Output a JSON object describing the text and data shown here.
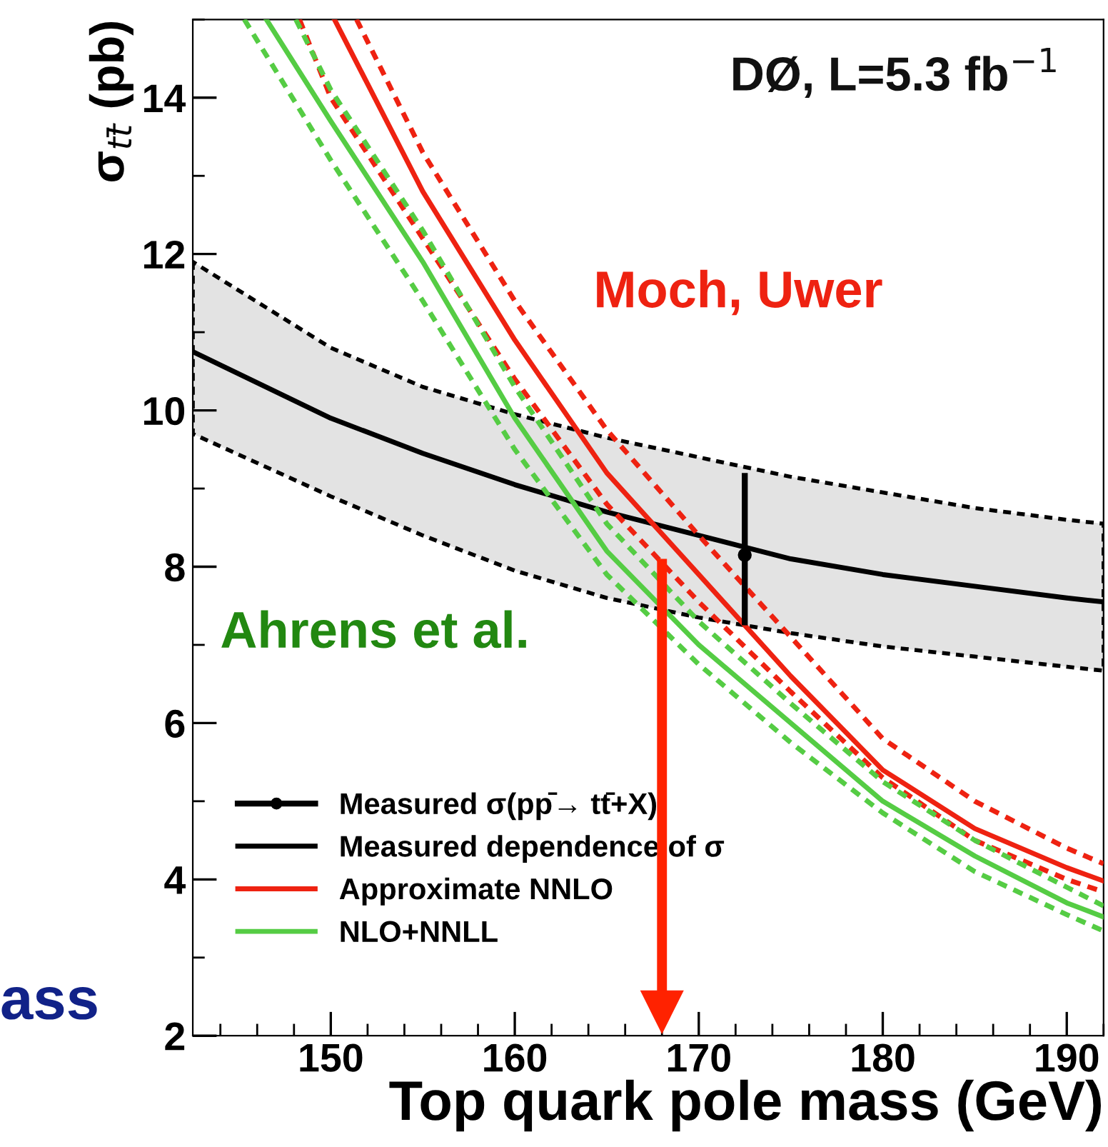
{
  "chart_data": {
    "type": "line",
    "xlabel": "Top quark pole mass (GeV)",
    "ylabel": "σ$_{tt̄}$ (pb)",
    "xlim": [
      142.5,
      192
    ],
    "ylim": [
      2,
      15
    ],
    "xticks": [
      150,
      160,
      170,
      180,
      190
    ],
    "yticks": [
      2,
      4,
      6,
      8,
      10,
      12,
      14
    ],
    "grid": false,
    "legend": "bottom left",
    "annotations": [
      "DØ, L=5.3 fb$^{−1}$",
      "Moch, Uwer",
      "Ahrens et al.",
      "ass"
    ],
    "series": [
      {
        "name": "Measured σ(pp̄→ tt̄+X)",
        "type": "scatter",
        "marker": "circle",
        "color": "#000000",
        "x": [
          172.5
        ],
        "values": [
          8.15
        ],
        "errors": [
          [
            7.25,
            9.2
          ]
        ]
      },
      {
        "name": "Measured dependence of σ",
        "line_style": "solid",
        "color": "#000000",
        "x": [
          142.5,
          150,
          155,
          160,
          165,
          170,
          175,
          180,
          185,
          190,
          192
        ],
        "values": [
          10.75,
          9.9,
          9.45,
          9.05,
          8.7,
          8.4,
          8.1,
          7.9,
          7.75,
          7.6,
          7.55
        ],
        "lower": [
          9.7,
          8.9,
          8.4,
          7.95,
          7.6,
          7.35,
          7.15,
          6.98,
          6.85,
          6.72,
          6.67
        ],
        "upper": [
          11.9,
          10.8,
          10.3,
          9.95,
          9.65,
          9.4,
          9.15,
          8.95,
          8.75,
          8.6,
          8.55
        ]
      },
      {
        "name": "Approximate NNLO",
        "line_style": "solid",
        "color": "#ee2211",
        "x": [
          150.2,
          155,
          160,
          165,
          170,
          175,
          180,
          185,
          190,
          192
        ],
        "values": [
          15,
          12.8,
          10.9,
          9.2,
          7.9,
          6.6,
          5.4,
          4.65,
          4.15,
          3.98
        ]
      },
      {
        "line_style": "dashed",
        "color": "#ee2211",
        "x": [
          151.4,
          155,
          160,
          165,
          170,
          175,
          180,
          185,
          190,
          192
        ],
        "values": [
          15,
          13.3,
          11.4,
          9.75,
          8.4,
          7.1,
          5.8,
          5.0,
          4.4,
          4.2
        ]
      },
      {
        "line_style": "dashed",
        "color": "#ee2211",
        "x": [
          148.3,
          150,
          155,
          160,
          165,
          170,
          175,
          180,
          185,
          190,
          192
        ],
        "values": [
          15,
          14.0,
          12.2,
          10.4,
          8.8,
          7.55,
          6.4,
          5.3,
          4.5,
          4.0,
          3.84
        ]
      },
      {
        "name": "NLO+NNLL",
        "line_style": "solid",
        "color": "#55cc44",
        "x": [
          146.5,
          150,
          155,
          160,
          165,
          170,
          175,
          180,
          185,
          190,
          192
        ],
        "values": [
          15,
          13.7,
          11.9,
          9.9,
          8.2,
          7.0,
          6.0,
          5.0,
          4.3,
          3.7,
          3.52
        ]
      },
      {
        "line_style": "dashed",
        "color": "#55cc44",
        "x": [
          148.1,
          150,
          155,
          160,
          165,
          170,
          175,
          180,
          185,
          190,
          192
        ],
        "values": [
          15,
          14.1,
          12.3,
          10.3,
          8.55,
          7.3,
          6.25,
          5.25,
          4.5,
          3.9,
          3.66
        ]
      },
      {
        "line_style": "dashed",
        "color": "#55cc44",
        "x": [
          145.3,
          150,
          155,
          160,
          165,
          170,
          175,
          180,
          185,
          190,
          192
        ],
        "values": [
          15,
          13.2,
          11.4,
          9.5,
          7.9,
          6.75,
          5.75,
          4.85,
          4.1,
          3.55,
          3.34
        ]
      },
      {
        "type": "line",
        "marker": "triangle",
        "color": "#ff2200",
        "x": [
          168,
          168
        ],
        "values": [
          8.1,
          2.3
        ]
      }
    ]
  }
}
